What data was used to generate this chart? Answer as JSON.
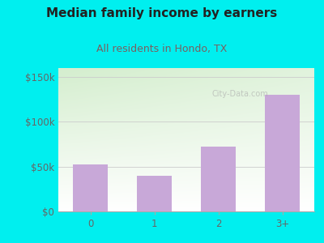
{
  "title": "Median family income by earners",
  "subtitle": "All residents in Hondo, TX",
  "categories": [
    "0",
    "1",
    "2",
    "3+"
  ],
  "values": [
    52000,
    40000,
    72000,
    130000
  ],
  "bar_color": "#c8a8d8",
  "title_color": "#222222",
  "subtitle_color": "#7a6060",
  "background_color": "#00efef",
  "plot_bg_top_left": "#d4eece",
  "plot_bg_bottom_right": "#f8fff8",
  "yticks": [
    0,
    50000,
    100000,
    150000
  ],
  "ytick_labels": [
    "$0",
    "$50k",
    "$100k",
    "$150k"
  ],
  "ylim": [
    0,
    160000
  ],
  "watermark": "City-Data.com",
  "title_fontsize": 11,
  "subtitle_fontsize": 9,
  "tick_fontsize": 8.5
}
